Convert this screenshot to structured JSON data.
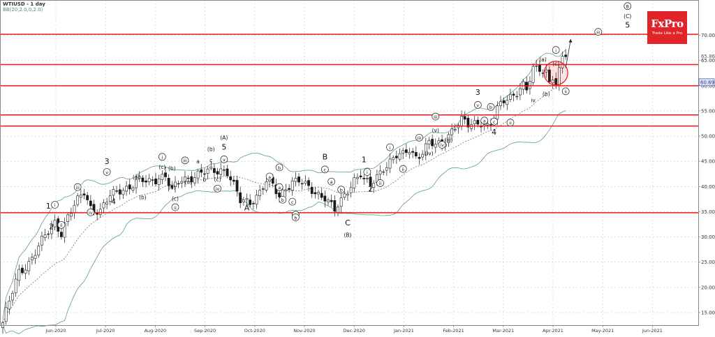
{
  "header": {
    "title": "WTIUSD - 1 day",
    "indicator": "BB(20,2.0,0,2.0)"
  },
  "logo": {
    "brand": "FxPro",
    "tagline": "Trade Like a Pro"
  },
  "colors": {
    "level": "#e8191e",
    "band": "#5aa07a",
    "grid": "#c8c8c8",
    "candle": "#1a1a1a",
    "price_tag": "#2b3f8c"
  },
  "chart_data": {
    "type": "candlestick",
    "symbol": "WTIUSD",
    "timeframe": "1 day",
    "x_ticks": [
      "Jun-2020",
      "Jul-2020",
      "Aug-2020",
      "Sep-2020",
      "Oct-2020",
      "Nov-2020",
      "Dec-2020",
      "Jan-2021",
      "Feb-2021",
      "Mar-2021",
      "Apr-2021",
      "May-2021",
      "Jun-2021"
    ],
    "y_ticks": [
      "15.00",
      "20.00",
      "25.00",
      "30.00",
      "35.00",
      "40.00",
      "45.00",
      "50.00",
      "55.00",
      "60.00",
      "65.00",
      "70.00"
    ],
    "ylim": [
      12.5,
      77
    ],
    "current_price_label": "60.69",
    "high_label": "65.86",
    "current_price": 60.69,
    "recent_high": 65.86,
    "horizontal_levels": [
      70.2,
      64.2,
      60.0,
      54.2,
      52.0,
      34.8
    ],
    "close_anchors": [
      [
        0,
        13
      ],
      [
        3,
        19
      ],
      [
        5,
        23
      ],
      [
        8,
        25
      ],
      [
        11,
        28
      ],
      [
        14,
        31
      ],
      [
        16,
        33
      ],
      [
        18,
        31
      ],
      [
        20,
        34
      ],
      [
        23,
        37
      ],
      [
        25,
        39
      ],
      [
        27,
        36
      ],
      [
        30,
        35
      ],
      [
        33,
        38
      ],
      [
        36,
        39.5
      ],
      [
        39,
        40
      ],
      [
        42,
        41
      ],
      [
        45,
        41
      ],
      [
        48,
        42
      ],
      [
        50,
        42
      ],
      [
        52,
        39
      ],
      [
        55,
        41.5
      ],
      [
        58,
        42
      ],
      [
        61,
        42.5
      ],
      [
        64,
        43
      ],
      [
        67,
        43.5
      ],
      [
        69,
        43
      ],
      [
        71,
        40
      ],
      [
        73,
        37
      ],
      [
        76,
        37
      ],
      [
        79,
        39
      ],
      [
        81,
        41
      ],
      [
        83,
        40
      ],
      [
        85,
        38
      ],
      [
        87,
        40
      ],
      [
        89,
        41
      ],
      [
        91,
        41
      ],
      [
        93,
        40
      ],
      [
        96,
        39
      ],
      [
        99,
        38
      ],
      [
        101,
        36
      ],
      [
        102,
        35
      ],
      [
        104,
        37
      ],
      [
        106,
        39.5
      ],
      [
        108,
        41.5
      ],
      [
        110,
        42.5
      ],
      [
        111,
        41
      ],
      [
        113,
        40
      ],
      [
        115,
        42
      ],
      [
        117,
        44
      ],
      [
        119,
        45
      ],
      [
        121,
        46
      ],
      [
        123,
        46
      ],
      [
        125,
        47.5
      ],
      [
        127,
        46
      ],
      [
        129,
        47
      ],
      [
        131,
        48.5
      ],
      [
        133,
        48
      ],
      [
        135,
        48.5
      ],
      [
        137,
        50.5
      ],
      [
        139,
        52
      ],
      [
        141,
        53
      ],
      [
        143,
        52
      ],
      [
        145,
        52.5
      ],
      [
        147,
        53
      ],
      [
        149,
        52
      ],
      [
        150,
        52.5
      ],
      [
        152,
        55
      ],
      [
        154,
        57
      ],
      [
        156,
        58
      ],
      [
        158,
        59
      ],
      [
        160,
        60
      ],
      [
        161,
        59
      ],
      [
        162,
        61
      ],
      [
        163,
        63
      ],
      [
        165,
        63.5
      ],
      [
        167,
        63
      ],
      [
        168,
        61
      ],
      [
        169,
        62
      ],
      [
        170,
        60
      ],
      [
        171,
        62.5
      ],
      [
        172,
        65.5
      ],
      [
        173,
        66
      ]
    ],
    "waves": [
      {
        "label": "1",
        "style": "plain",
        "x": 14,
        "y": 35.6
      },
      {
        "label": "2",
        "style": "plain",
        "x": 15,
        "y": 31.5
      },
      {
        "label": "i",
        "style": "circle",
        "x": 16,
        "y": 36
      },
      {
        "label": "ii",
        "style": "circle",
        "x": 18,
        "y": 32
      },
      {
        "label": "iii",
        "style": "circle",
        "x": 23,
        "y": 39.5
      },
      {
        "label": "iv",
        "style": "circle",
        "x": 27,
        "y": 34.5
      },
      {
        "label": "v",
        "style": "circle",
        "x": 32,
        "y": 42.5
      },
      {
        "label": "3",
        "style": "plain",
        "x": 32,
        "y": 44.5
      },
      {
        "label": "4",
        "style": "plain",
        "x": 34,
        "y": 36.5
      },
      {
        "label": "(a)",
        "style": "paren",
        "x": 41,
        "y": 41.5
      },
      {
        "label": "(b)",
        "style": "paren",
        "x": 43,
        "y": 37.5
      },
      {
        "label": "(c)",
        "style": "paren",
        "x": 49,
        "y": 43.5
      },
      {
        "label": "i",
        "style": "circle",
        "x": 49,
        "y": 45.5
      },
      {
        "label": "(b)",
        "style": "paren",
        "x": 52,
        "y": 43.2
      },
      {
        "label": "(a)",
        "style": "paren",
        "x": 52,
        "y": 39.5
      },
      {
        "label": "(c)",
        "style": "paren",
        "x": 53,
        "y": 37.2
      },
      {
        "label": "ii",
        "style": "circle",
        "x": 53,
        "y": 35.5
      },
      {
        "label": "iii",
        "style": "circle",
        "x": 56,
        "y": 44.8
      },
      {
        "label": "(a)",
        "style": "paren",
        "x": 57,
        "y": 40.5
      },
      {
        "label": "a",
        "style": "plain",
        "x": 60,
        "y": 44.6
      },
      {
        "label": "b",
        "style": "plain",
        "x": 62,
        "y": 41
      },
      {
        "label": "c",
        "style": "plain",
        "x": 64,
        "y": 44.8
      },
      {
        "label": "(c)",
        "style": "paren",
        "x": 66,
        "y": 41
      },
      {
        "label": "iv",
        "style": "circle",
        "x": 66,
        "y": 39.2
      },
      {
        "label": "(b)",
        "style": "paren",
        "x": 64,
        "y": 47
      },
      {
        "label": "v",
        "style": "circle",
        "x": 68,
        "y": 45
      },
      {
        "label": "5",
        "style": "plain",
        "x": 68,
        "y": 47.3
      },
      {
        "label": "(A)",
        "style": "paren",
        "x": 68,
        "y": 49.3
      },
      {
        "label": "A",
        "style": "plain",
        "x": 75,
        "y": 35.3
      },
      {
        "label": "a",
        "style": "circle",
        "x": 82,
        "y": 41.6
      },
      {
        "label": "b",
        "style": "circle",
        "x": 85,
        "y": 43.4
      },
      {
        "label": "a",
        "style": "circle",
        "x": 85,
        "y": 39.5
      },
      {
        "label": "b",
        "style": "circle",
        "x": 86,
        "y": 37
      },
      {
        "label": "c",
        "style": "circle",
        "x": 89,
        "y": 36.6
      },
      {
        "label": "c",
        "style": "circle",
        "x": 90,
        "y": 34
      },
      {
        "label": "b",
        "style": "circle",
        "x": 90,
        "y": 33.5
      },
      {
        "label": "B",
        "style": "plain",
        "x": 99,
        "y": 45.4
      },
      {
        "label": "c",
        "style": "circle",
        "x": 99,
        "y": 43
      },
      {
        "label": "a",
        "style": "circle",
        "x": 101,
        "y": 40.6
      },
      {
        "label": "b",
        "style": "circle",
        "x": 104,
        "y": 39
      },
      {
        "label": "C",
        "style": "plain",
        "x": 106,
        "y": 32.3
      },
      {
        "label": "(B)",
        "style": "paren",
        "x": 106,
        "y": 30
      },
      {
        "label": "1",
        "style": "plain",
        "x": 111,
        "y": 44.8
      },
      {
        "label": "2",
        "style": "plain",
        "x": 113,
        "y": 39
      },
      {
        "label": "i",
        "style": "circle",
        "x": 112,
        "y": 42.5
      },
      {
        "label": "ii",
        "style": "circle",
        "x": 116,
        "y": 40.3
      },
      {
        "label": "i",
        "style": "circle",
        "x": 119,
        "y": 47.4
      },
      {
        "label": "ii",
        "style": "circle",
        "x": 123,
        "y": 43.1
      },
      {
        "label": "iii",
        "style": "circle",
        "x": 128,
        "y": 49.3
      },
      {
        "label": "(iv)",
        "style": "paren",
        "x": 131,
        "y": 46.2
      },
      {
        "label": "(v)",
        "style": "paren",
        "x": 133,
        "y": 50.8
      },
      {
        "label": "iv",
        "style": "circle",
        "x": 135,
        "y": 47.9
      },
      {
        "label": "(iii)",
        "style": "paren",
        "x": 137,
        "y": 48.8
      },
      {
        "label": "iii",
        "style": "circle",
        "x": 133,
        "y": 53.5
      },
      {
        "label": "3",
        "style": "plain",
        "x": 146,
        "y": 58.2
      },
      {
        "label": "v",
        "style": "circle",
        "x": 146,
        "y": 55.8
      },
      {
        "label": "a",
        "style": "circle",
        "x": 148,
        "y": 52.7
      },
      {
        "label": "b",
        "style": "circle",
        "x": 150,
        "y": 55.4
      },
      {
        "label": "c",
        "style": "circle",
        "x": 151,
        "y": 52.5
      },
      {
        "label": "4",
        "style": "plain",
        "x": 151,
        "y": 50.3
      },
      {
        "label": "ii",
        "style": "circle",
        "x": 156,
        "y": 52.3
      },
      {
        "label": "iii",
        "style": "plain",
        "x": 161,
        "y": 60
      },
      {
        "label": "iv",
        "style": "plain",
        "x": 163,
        "y": 56.7
      },
      {
        "label": "(a)",
        "style": "paren",
        "x": 166,
        "y": 64.8
      },
      {
        "label": "(b)",
        "style": "paren",
        "x": 167,
        "y": 58
      },
      {
        "label": "i",
        "style": "circle",
        "x": 170,
        "y": 66.7
      },
      {
        "label": "(c)",
        "style": "paren",
        "x": 170,
        "y": 64
      },
      {
        "label": "ii",
        "style": "circle",
        "x": 173,
        "y": 58.5
      },
      {
        "label": "iii",
        "style": "circle",
        "x": 183,
        "y": 70.3
      },
      {
        "label": "B",
        "style": "circle",
        "x": 192,
        "y": 75.4
      },
      {
        "label": "(C)",
        "style": "paren",
        "x": 192,
        "y": 73.4
      },
      {
        "label": "5",
        "style": "plain",
        "x": 192,
        "y": 71.5
      }
    ]
  }
}
